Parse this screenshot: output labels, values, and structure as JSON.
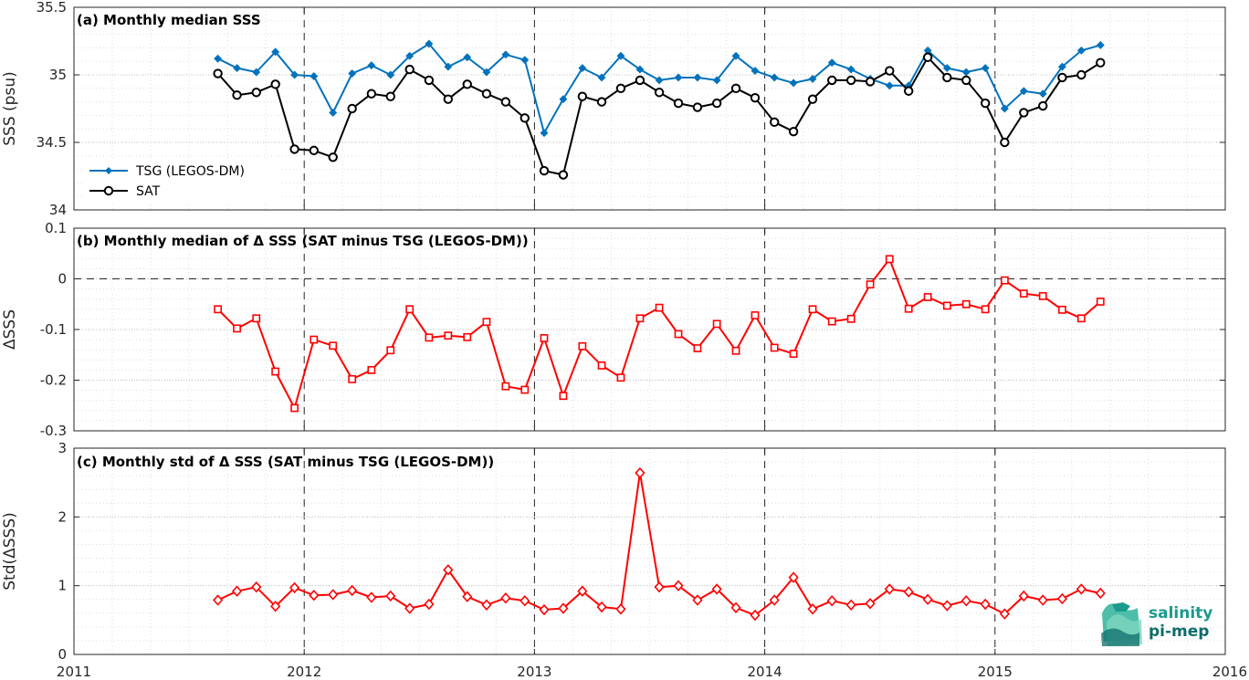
{
  "chart_data": [
    {
      "type": "line",
      "panel": "a",
      "title": "(a) Monthly median SSS",
      "xlabel": "",
      "ylabel": "SSS (psu)",
      "xlim": [
        2011,
        2016
      ],
      "ylim": [
        34,
        35.5
      ],
      "yticks": [
        34,
        34.5,
        35,
        35.5
      ],
      "ytick_labels": [
        "34",
        "34.5",
        "35",
        "35.5"
      ],
      "xticks": [
        "2011",
        "2012",
        "2013",
        "2014",
        "2015",
        "2016"
      ],
      "grid": true,
      "legend": "left",
      "series": [
        {
          "name": "TSG (LEGOS-DM)",
          "color": "#0072BD",
          "marker": "diamond-filled",
          "x": [
            2011.625,
            2011.708,
            2011.792,
            2011.875,
            2011.958,
            2012.042,
            2012.125,
            2012.208,
            2012.292,
            2012.375,
            2012.458,
            2012.542,
            2012.625,
            2012.708,
            2012.792,
            2012.875,
            2012.958,
            2013.042,
            2013.125,
            2013.208,
            2013.292,
            2013.375,
            2013.458,
            2013.542,
            2013.625,
            2013.708,
            2013.792,
            2013.875,
            2013.958,
            2014.042,
            2014.125,
            2014.208,
            2014.292,
            2014.375,
            2014.458,
            2014.542,
            2014.625,
            2014.708,
            2014.792,
            2014.875,
            2014.958,
            2015.042,
            2015.125,
            2015.208,
            2015.292,
            2015.375,
            2015.458
          ],
          "y": [
            35.12,
            35.05,
            35.02,
            35.17,
            35.0,
            34.99,
            34.72,
            35.01,
            35.07,
            35.0,
            35.14,
            35.23,
            35.06,
            35.13,
            35.02,
            35.15,
            35.11,
            34.57,
            34.82,
            35.05,
            34.98,
            35.14,
            35.04,
            34.96,
            34.98,
            34.98,
            34.96,
            35.14,
            35.03,
            34.98,
            34.94,
            34.97,
            35.09,
            35.04,
            34.97,
            34.92,
            34.92,
            35.18,
            35.05,
            35.02,
            35.05,
            34.75,
            34.88,
            34.86,
            35.06,
            35.18,
            35.22
          ]
        },
        {
          "name": "SAT",
          "color": "#000000",
          "marker": "circle-open",
          "x": [
            2011.625,
            2011.708,
            2011.792,
            2011.875,
            2011.958,
            2012.042,
            2012.125,
            2012.208,
            2012.292,
            2012.375,
            2012.458,
            2012.542,
            2012.625,
            2012.708,
            2012.792,
            2012.875,
            2012.958,
            2013.042,
            2013.125,
            2013.208,
            2013.292,
            2013.375,
            2013.458,
            2013.542,
            2013.625,
            2013.708,
            2013.792,
            2013.875,
            2013.958,
            2014.042,
            2014.125,
            2014.208,
            2014.292,
            2014.375,
            2014.458,
            2014.542,
            2014.625,
            2014.708,
            2014.792,
            2014.875,
            2014.958,
            2015.042,
            2015.125,
            2015.208,
            2015.292,
            2015.375,
            2015.458
          ],
          "y": [
            35.01,
            34.85,
            34.87,
            34.93,
            34.45,
            34.44,
            34.39,
            34.75,
            34.86,
            34.84,
            35.04,
            34.96,
            34.82,
            34.93,
            34.86,
            34.8,
            34.68,
            34.29,
            34.26,
            34.84,
            34.8,
            34.9,
            34.96,
            34.87,
            34.79,
            34.76,
            34.79,
            34.9,
            34.83,
            34.65,
            34.58,
            34.82,
            34.96,
            34.96,
            34.95,
            35.03,
            34.88,
            35.13,
            34.98,
            34.96,
            34.79,
            34.5,
            34.72,
            34.77,
            34.98,
            35.0,
            35.09
          ]
        }
      ]
    },
    {
      "type": "line",
      "panel": "b",
      "title": "(b) Monthly median of Δ SSS (SAT minus TSG (LEGOS-DM))",
      "xlabel": "",
      "ylabel": "ΔSSS",
      "xlim": [
        2011,
        2016
      ],
      "ylim": [
        -0.3,
        0.1
      ],
      "yticks": [
        -0.3,
        -0.2,
        -0.1,
        0,
        0.1
      ],
      "ytick_labels": [
        "-0.3",
        "-0.2",
        "-0.1",
        "0",
        "0.1"
      ],
      "xticks": [
        "2011",
        "2012",
        "2013",
        "2014",
        "2015",
        "2016"
      ],
      "grid": true,
      "series": [
        {
          "name": "",
          "color": "#FF0000",
          "marker": "square-open",
          "x": [
            2011.625,
            2011.708,
            2011.792,
            2011.875,
            2011.958,
            2012.042,
            2012.125,
            2012.208,
            2012.292,
            2012.375,
            2012.458,
            2012.542,
            2012.625,
            2012.708,
            2012.792,
            2012.875,
            2012.958,
            2013.042,
            2013.125,
            2013.208,
            2013.292,
            2013.375,
            2013.458,
            2013.542,
            2013.625,
            2013.708,
            2013.792,
            2013.875,
            2013.958,
            2014.042,
            2014.125,
            2014.208,
            2014.292,
            2014.375,
            2014.458,
            2014.542,
            2014.625,
            2014.708,
            2014.792,
            2014.875,
            2014.958,
            2015.042,
            2015.125,
            2015.208,
            2015.292,
            2015.375,
            2015.458
          ],
          "y": [
            -0.06,
            -0.098,
            -0.078,
            -0.183,
            -0.255,
            -0.12,
            -0.132,
            -0.198,
            -0.18,
            -0.141,
            -0.06,
            -0.116,
            -0.112,
            -0.115,
            -0.085,
            -0.212,
            -0.219,
            -0.117,
            -0.231,
            -0.133,
            -0.171,
            -0.195,
            -0.078,
            -0.057,
            -0.109,
            -0.137,
            -0.089,
            -0.142,
            -0.072,
            -0.136,
            -0.148,
            -0.06,
            -0.084,
            -0.079,
            -0.011,
            0.039,
            -0.059,
            -0.036,
            -0.053,
            -0.05,
            -0.06,
            -0.003,
            -0.029,
            -0.034,
            -0.061,
            -0.078,
            -0.045
          ]
        }
      ]
    },
    {
      "type": "line",
      "panel": "c",
      "title": "(c) Monthly std of Δ SSS (SAT minus TSG (LEGOS-DM))",
      "xlabel": "",
      "ylabel": "Std(ΔSSS)",
      "xlim": [
        2011,
        2016
      ],
      "ylim": [
        0,
        3
      ],
      "yticks": [
        0,
        1,
        2,
        3
      ],
      "ytick_labels": [
        "0",
        "1",
        "2",
        "3"
      ],
      "xticks": [
        "2011",
        "2012",
        "2013",
        "2014",
        "2015",
        "2016"
      ],
      "grid": true,
      "series": [
        {
          "name": "",
          "color": "#FF0000",
          "marker": "diamond-open",
          "x": [
            2011.625,
            2011.708,
            2011.792,
            2011.875,
            2011.958,
            2012.042,
            2012.125,
            2012.208,
            2012.292,
            2012.375,
            2012.458,
            2012.542,
            2012.625,
            2012.708,
            2012.792,
            2012.875,
            2012.958,
            2013.042,
            2013.125,
            2013.208,
            2013.292,
            2013.375,
            2013.458,
            2013.542,
            2013.625,
            2013.708,
            2013.792,
            2013.875,
            2013.958,
            2014.042,
            2014.125,
            2014.208,
            2014.292,
            2014.375,
            2014.458,
            2014.542,
            2014.625,
            2014.708,
            2014.792,
            2014.875,
            2014.958,
            2015.042,
            2015.125,
            2015.208,
            2015.292,
            2015.375,
            2015.458
          ],
          "y": [
            0.79,
            0.92,
            0.98,
            0.7,
            0.97,
            0.86,
            0.87,
            0.93,
            0.83,
            0.85,
            0.67,
            0.73,
            1.23,
            0.84,
            0.72,
            0.82,
            0.78,
            0.65,
            0.67,
            0.92,
            0.69,
            0.66,
            2.64,
            0.98,
            1.0,
            0.79,
            0.95,
            0.68,
            0.57,
            0.79,
            1.12,
            0.66,
            0.78,
            0.72,
            0.74,
            0.95,
            0.91,
            0.8,
            0.71,
            0.78,
            0.73,
            0.59,
            0.85,
            0.79,
            0.81,
            0.95,
            0.89
          ]
        }
      ]
    }
  ],
  "logo": {
    "line1": "salinity",
    "line2": "pi-mep",
    "colors": [
      "#1a9a8c",
      "#0d6d6a"
    ]
  }
}
